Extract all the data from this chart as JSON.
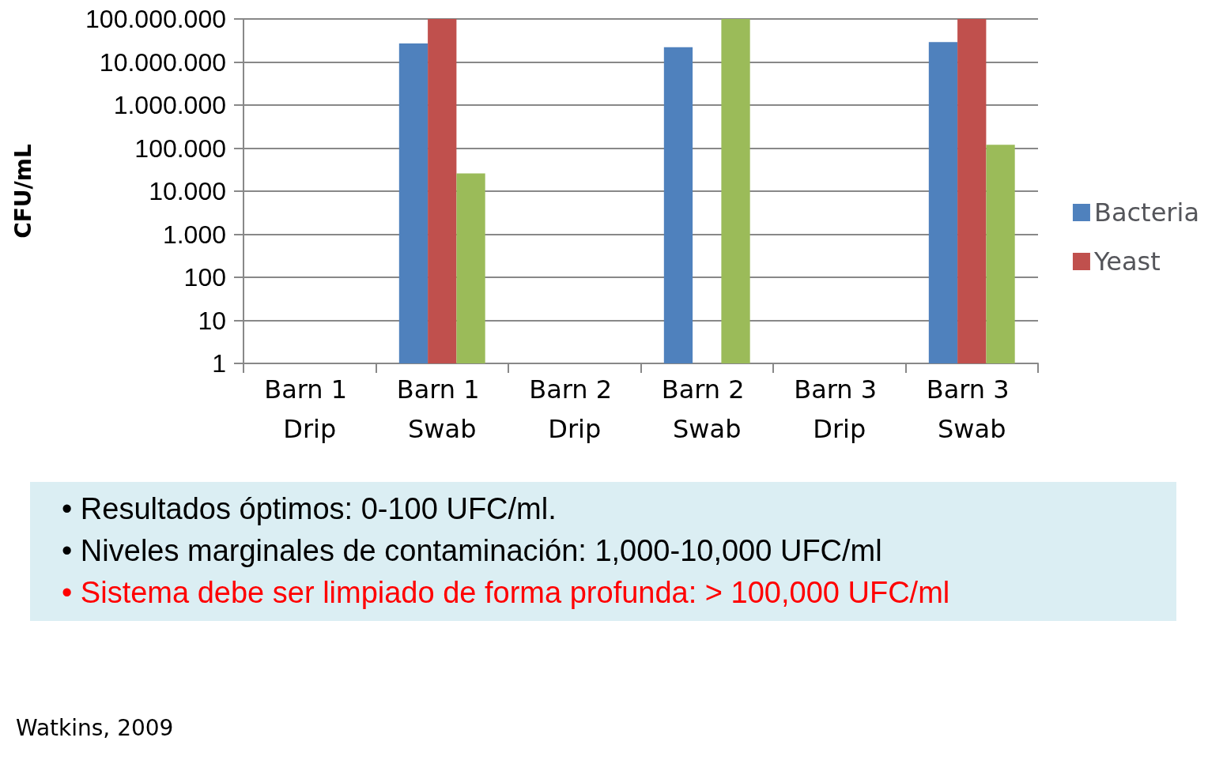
{
  "chart_data": {
    "type": "bar",
    "ylabel": "CFU/mL",
    "categories": [
      "Barn 1 Drip",
      "Barn 1 Swab",
      "Barn 2 Drip",
      "Barn 2 Swab",
      "Barn 3 Drip",
      "Barn 3 Swab"
    ],
    "series": [
      {
        "name": "Bacteria",
        "color": "#4f81bd",
        "values": [
          null,
          27000000,
          null,
          22000000,
          null,
          29000000
        ]
      },
      {
        "name": "Yeast",
        "color": "#c0504d",
        "values": [
          null,
          100000000,
          null,
          null,
          null,
          100000000
        ]
      },
      {
        "color": "#9bbb59",
        "values": [
          null,
          26000,
          null,
          100000000,
          null,
          120000
        ]
      }
    ],
    "log": "y",
    "ylim": [
      1,
      100000000
    ],
    "yticks": [
      {
        "value": 1,
        "label": "1"
      },
      {
        "value": 10,
        "label": "10"
      },
      {
        "value": 100,
        "label": "100"
      },
      {
        "value": 1000,
        "label": "1.000"
      },
      {
        "value": 10000,
        "label": "10.000"
      },
      {
        "value": 100000,
        "label": "100.000"
      },
      {
        "value": 1000000,
        "label": "1.000.000"
      },
      {
        "value": 10000000,
        "label": "10.000.000"
      },
      {
        "value": 100000000,
        "label": "100.000.000"
      }
    ],
    "grid": "y",
    "legend": "right",
    "annotations": [
      "• Resultados óptimos: 0-100 UFC/ml.",
      "• Niveles marginales de contaminación: 1,000-10,000 UFC/ml",
      "• Sistema debe ser limpiado de forma profunda: > 100,000 UFC/ml",
      "Watkins, 2009"
    ]
  }
}
